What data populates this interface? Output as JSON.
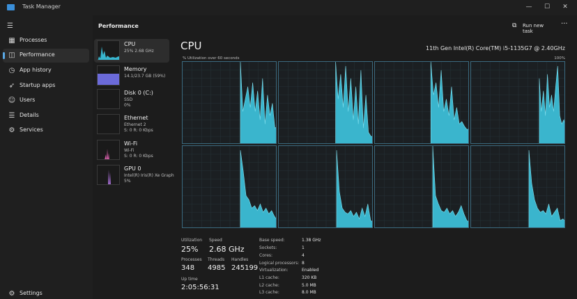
{
  "window": {
    "title": "Task Manager",
    "buttons": {
      "minimize": "—",
      "maximize": "☐",
      "close": "✕"
    }
  },
  "nav": {
    "items": [
      {
        "label": "Processes",
        "icon": "▦",
        "icon_name": "processes-icon"
      },
      {
        "label": "Performance",
        "icon": "◫",
        "icon_name": "performance-icon",
        "active": true
      },
      {
        "label": "App history",
        "icon": "◷",
        "icon_name": "app-history-icon"
      },
      {
        "label": "Startup apps",
        "icon": "➶",
        "icon_name": "startup-icon"
      },
      {
        "label": "Users",
        "icon": "☺",
        "icon_name": "users-icon"
      },
      {
        "label": "Details",
        "icon": "☰",
        "icon_name": "details-icon"
      },
      {
        "label": "Services",
        "icon": "⚙",
        "icon_name": "services-icon"
      }
    ],
    "settings": {
      "label": "Settings",
      "icon": "⚙"
    }
  },
  "toolbar": {
    "title": "Performance",
    "run_new_task": "Run new task",
    "more": "···"
  },
  "resources": [
    {
      "name": "CPU",
      "sub1": "25% 2.68 GHz",
      "sub2": "",
      "active": true,
      "color": "#38b6cf"
    },
    {
      "name": "Memory",
      "sub1": "14.1/23.7 GB (59%)",
      "sub2": "",
      "color": "#6b6ad9"
    },
    {
      "name": "Disk 0 (C:)",
      "sub1": "SSD",
      "sub2": "0%",
      "color": "#5aa04a"
    },
    {
      "name": "Ethernet",
      "sub1": "Ethernet 2",
      "sub2": "S: 0 R: 0 Kbps",
      "color": "#c07a3a"
    },
    {
      "name": "Wi-Fi",
      "sub1": "Wi-Fi",
      "sub2": "S: 0 R: 0 Kbps",
      "color": "#d45ea8"
    },
    {
      "name": "GPU 0",
      "sub1": "Intel(R) Iris(R) Xe Graph",
      "sub2": "5%",
      "color": "#a86fd6"
    }
  ],
  "cpu": {
    "heading": "CPU",
    "model": "11th Gen Intel(R) Core(TM) i5-1135G7 @ 2.40GHz",
    "util_caption": "% Utilization over 60 seconds",
    "util_max": "100%",
    "graph_color": "#3ab5cd",
    "stats": {
      "utilization_label": "Utilization",
      "utilization": "25%",
      "speed_label": "Speed",
      "speed": "2.68 GHz",
      "processes_label": "Processes",
      "processes": "348",
      "threads_label": "Threads",
      "threads": "4985",
      "handles_label": "Handles",
      "handles": "245199",
      "uptime_label": "Up time",
      "uptime": "2:05:56:31"
    },
    "specs": [
      {
        "k": "Base speed:",
        "v": "1.38 GHz"
      },
      {
        "k": "Sockets:",
        "v": "1"
      },
      {
        "k": "Cores:",
        "v": "4"
      },
      {
        "k": "Logical processors:",
        "v": "8"
      },
      {
        "k": "Virtualization:",
        "v": "Enabled"
      },
      {
        "k": "L1 cache:",
        "v": "320 KB"
      },
      {
        "k": "L2 cache:",
        "v": "5.0 MB"
      },
      {
        "k": "L3 cache:",
        "v": "8.0 MB"
      }
    ]
  }
}
